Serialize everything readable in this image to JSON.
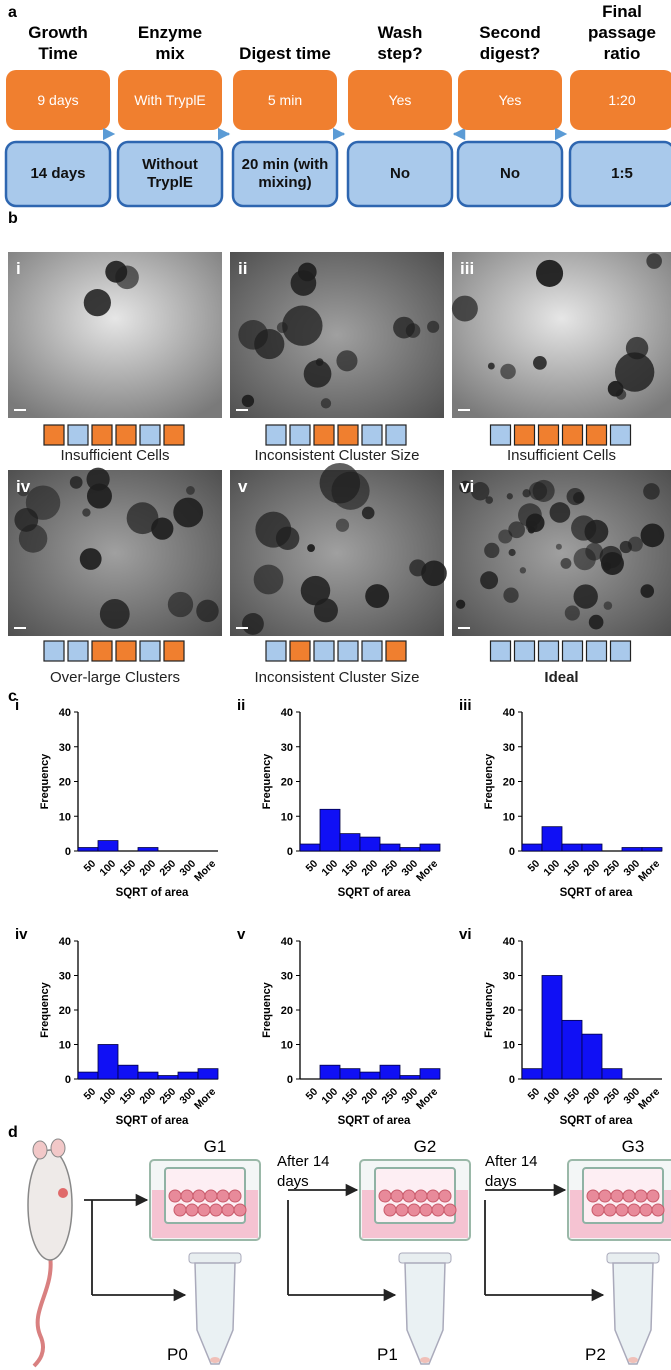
{
  "panel_a": {
    "label": "a",
    "columns": [
      {
        "header": "Growth Time",
        "option1": "9 days",
        "option2": "14 days"
      },
      {
        "header": "Enzyme mix",
        "option1": "With TryplE",
        "option2": "Without TryplE"
      },
      {
        "header": "Digest time",
        "option1": "5 min",
        "option2": "20 min (with mixing)"
      },
      {
        "header": "Wash step?",
        "option1": "Yes",
        "option2": "No"
      },
      {
        "header": "Second digest?",
        "option1": "Yes",
        "option2": "No"
      },
      {
        "header": "Final passage ratio",
        "option1": "1:20",
        "option2": "1:5"
      }
    ],
    "option1_color": "#f07f2f",
    "option2_color": "#a9c9eb"
  },
  "panel_b": {
    "label": "b",
    "images": [
      {
        "label": "i",
        "squares": [
          "#f07f2f",
          "#a9c9eb",
          "#f07f2f",
          "#f07f2f",
          "#a9c9eb",
          "#f07f2f"
        ],
        "caption": "Insufficient Cells"
      },
      {
        "label": "ii",
        "squares": [
          "#a9c9eb",
          "#a9c9eb",
          "#f07f2f",
          "#f07f2f",
          "#a9c9eb",
          "#a9c9eb"
        ],
        "caption": "Inconsistent Cluster Size"
      },
      {
        "label": "iii",
        "squares": [
          "#a9c9eb",
          "#f07f2f",
          "#f07f2f",
          "#f07f2f",
          "#f07f2f",
          "#a9c9eb"
        ],
        "caption": "Insufficient Cells"
      },
      {
        "label": "iv",
        "squares": [
          "#a9c9eb",
          "#a9c9eb",
          "#f07f2f",
          "#f07f2f",
          "#a9c9eb",
          "#f07f2f"
        ],
        "caption": "Over-large Clusters"
      },
      {
        "label": "v",
        "squares": [
          "#a9c9eb",
          "#f07f2f",
          "#a9c9eb",
          "#a9c9eb",
          "#a9c9eb",
          "#f07f2f"
        ],
        "caption": "Inconsistent Cluster Size"
      },
      {
        "label": "vi",
        "squares": [
          "#a9c9eb",
          "#a9c9eb",
          "#a9c9eb",
          "#a9c9eb",
          "#a9c9eb",
          "#a9c9eb"
        ],
        "caption": "Ideal"
      }
    ]
  },
  "panel_c": {
    "label": "c"
  },
  "chart_data": [
    {
      "type": "bar",
      "panel": "i",
      "categories": [
        "50",
        "100",
        "150",
        "200",
        "250",
        "300",
        "More"
      ],
      "values": [
        1,
        3,
        0,
        1,
        0,
        0,
        0
      ],
      "color": "#1010f5",
      "ylim": [
        0,
        40
      ],
      "yticks": [
        0,
        10,
        20,
        30,
        40
      ],
      "y_label": "Frequency",
      "x_label": "SQRT of area"
    },
    {
      "type": "bar",
      "panel": "ii",
      "categories": [
        "50",
        "100",
        "150",
        "200",
        "250",
        "300",
        "More"
      ],
      "values": [
        2,
        12,
        5,
        4,
        2,
        1,
        2
      ],
      "color": "#1010f5",
      "ylim": [
        0,
        40
      ],
      "yticks": [
        0,
        10,
        20,
        30,
        40
      ],
      "y_label": "Frequency",
      "x_label": "SQRT of area"
    },
    {
      "type": "bar",
      "panel": "iii",
      "categories": [
        "50",
        "100",
        "150",
        "200",
        "250",
        "300",
        "More"
      ],
      "values": [
        2,
        7,
        2,
        2,
        0,
        1,
        1
      ],
      "color": "#1010f5",
      "ylim": [
        0,
        40
      ],
      "yticks": [
        0,
        10,
        20,
        30,
        40
      ],
      "y_label": "Frequency",
      "x_label": "SQRT of area"
    },
    {
      "type": "bar",
      "panel": "iv",
      "categories": [
        "50",
        "100",
        "150",
        "200",
        "250",
        "300",
        "More"
      ],
      "values": [
        2,
        10,
        4,
        2,
        1,
        2,
        3
      ],
      "color": "#1010f5",
      "ylim": [
        0,
        40
      ],
      "yticks": [
        0,
        10,
        20,
        30,
        40
      ],
      "y_label": "Frequency",
      "x_label": "SQRT of area"
    },
    {
      "type": "bar",
      "panel": "v",
      "categories": [
        "50",
        "100",
        "150",
        "200",
        "250",
        "300",
        "More"
      ],
      "values": [
        0,
        4,
        3,
        2,
        4,
        1,
        3
      ],
      "color": "#1010f5",
      "ylim": [
        0,
        40
      ],
      "yticks": [
        0,
        10,
        20,
        30,
        40
      ],
      "y_label": "Frequency",
      "x_label": "SQRT of area"
    },
    {
      "type": "bar",
      "panel": "vi",
      "categories": [
        "50",
        "100",
        "150",
        "200",
        "250",
        "300",
        "More"
      ],
      "values": [
        3,
        30,
        17,
        13,
        3,
        0,
        0
      ],
      "color": "#1010f5",
      "ylim": [
        0,
        40
      ],
      "yticks": [
        0,
        10,
        20,
        30,
        40
      ],
      "y_label": "Frequency",
      "x_label": "SQRT of area"
    }
  ],
  "panel_d": {
    "label": "d",
    "wells": [
      "G1",
      "G2",
      "G3"
    ],
    "tubes": [
      "P0",
      "P1",
      "P2"
    ],
    "intervals": [
      "After 14 days",
      "After 14 days"
    ]
  }
}
